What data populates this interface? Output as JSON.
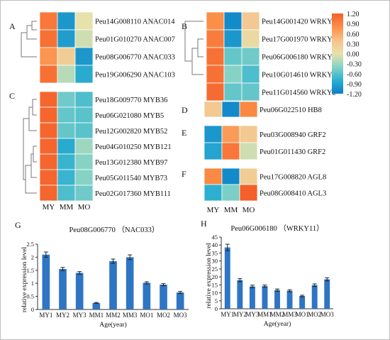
{
  "chart_data": [
    {
      "type": "heatmap",
      "panel": "A",
      "columns": [
        "MY",
        "MM",
        "MO"
      ],
      "rows": [
        {
          "label": "Peu14G008110 ANAC014",
          "values": [
            1.0,
            -1.0,
            0.0
          ]
        },
        {
          "label": "Peu01G010270 ANAC007",
          "values": [
            1.05,
            -0.95,
            -0.1
          ]
        },
        {
          "label": "Peu08G006770 ANAC033",
          "values": [
            0.75,
            0.25,
            -1.0
          ]
        },
        {
          "label": "Peu19G006290 ANAC103",
          "values": [
            1.05,
            -0.2,
            -0.85
          ]
        }
      ]
    },
    {
      "type": "heatmap",
      "panel": "B",
      "columns": [
        "MY",
        "MM",
        "MO"
      ],
      "rows": [
        {
          "label": "Peu14G001420 WRKY7",
          "values": [
            0.8,
            -1.1,
            0.3
          ]
        },
        {
          "label": "Peu17G001970 WRKY19",
          "values": [
            0.95,
            -1.0,
            0.1
          ]
        },
        {
          "label": "Peu06G006180 WRKY11",
          "values": [
            1.05,
            -0.55,
            -0.5
          ]
        },
        {
          "label": "Peu10G014610 WRKY3",
          "values": [
            1.05,
            -0.4,
            -0.65
          ]
        },
        {
          "label": "Peu11G014560 WRKY2",
          "values": [
            1.1,
            -0.55,
            -0.55
          ]
        }
      ]
    },
    {
      "type": "heatmap",
      "panel": "C",
      "columns": [
        "MY",
        "MM",
        "MO"
      ],
      "rows": [
        {
          "label": "Peu18G009770 MYB36",
          "values": [
            1.15,
            -0.5,
            -0.65
          ]
        },
        {
          "label": "Peu06G021080 MYB5",
          "values": [
            1.15,
            -0.55,
            -0.6
          ]
        },
        {
          "label": "Peu12G002820 MYB52",
          "values": [
            1.15,
            -0.55,
            -0.6
          ]
        },
        {
          "label": "Peu04G010250 MYB121",
          "values": [
            1.15,
            -0.85,
            -0.3
          ]
        },
        {
          "label": "Peu13G012380 MYB97",
          "values": [
            1.15,
            -0.75,
            -0.4
          ]
        },
        {
          "label": "Peu05G011540 MYB73",
          "values": [
            1.15,
            -0.75,
            -0.4
          ]
        },
        {
          "label": "Peu02G017360 MYB111",
          "values": [
            1.15,
            -0.65,
            -0.5
          ]
        }
      ]
    },
    {
      "type": "heatmap",
      "panel": "D",
      "columns": [
        "MY",
        "MM",
        "MO"
      ],
      "rows": [
        {
          "label": "Peu06G022510 HB8",
          "values": [
            0.3,
            -1.1,
            0.85
          ]
        }
      ]
    },
    {
      "type": "heatmap",
      "panel": "E",
      "columns": [
        "MY",
        "MM",
        "MO"
      ],
      "rows": [
        {
          "label": "Peu03G008940 GRF2",
          "values": [
            -1.0,
            0.7,
            0.3
          ]
        },
        {
          "label": "Peu01G011430 GRF2",
          "values": [
            -0.9,
            1.0,
            -0.1
          ]
        }
      ]
    },
    {
      "type": "heatmap",
      "panel": "F",
      "columns": [
        "MY",
        "MM",
        "MO"
      ],
      "rows": [
        {
          "label": "Peu17G008820 AGL8",
          "values": [
            0.85,
            -1.1,
            0.25
          ]
        },
        {
          "label": "Peu08G008410 AGL3",
          "values": [
            -0.8,
            -0.45,
            1.2
          ]
        }
      ]
    },
    {
      "type": "colorbar",
      "ticks": [
        "1.20",
        "0.90",
        "0.60",
        "0.30",
        "0.00",
        "-0.30",
        "-0.60",
        "-0.90",
        "-1.20"
      ],
      "range": [
        -1.2,
        1.2
      ],
      "colors": [
        "#0a7ec8",
        "#2db0d0",
        "#86d3c6",
        "#e7e1aa",
        "#f7c189",
        "#fb8f48",
        "#f45f2a"
      ]
    },
    {
      "type": "bar",
      "panel": "G",
      "title": "Peu08G006770 （NAC033）",
      "xlabel": "Age(year)",
      "ylabel": "relative expression level",
      "categories": [
        "MY1",
        "MY2",
        "MY3",
        "MM1",
        "MM2",
        "MM3",
        "MO1",
        "MO2",
        "MO3"
      ],
      "values": [
        2.1,
        1.55,
        1.4,
        0.25,
        1.85,
        2.0,
        1.02,
        0.95,
        0.65
      ],
      "errors": [
        0.1,
        0.06,
        0.05,
        0.02,
        0.08,
        0.09,
        0.04,
        0.04,
        0.04
      ],
      "yticks": [
        "0",
        "0.5",
        "1",
        "1.5",
        "2",
        "2.5"
      ],
      "ylim": [
        0,
        2.5
      ],
      "bar_color": "#2e75c4"
    },
    {
      "type": "bar",
      "panel": "H",
      "title": "Peu06G006180 （WRKY11）",
      "xlabel": "Age(year)",
      "ylabel": "relative expression level",
      "categories": [
        "MY1",
        "MY2",
        "MY3",
        "MM1",
        "MM2",
        "MM3",
        "MO1",
        "MO2",
        "MO3"
      ],
      "values": [
        38.5,
        18.0,
        14.0,
        14.2,
        11.7,
        11.3,
        8.0,
        14.8,
        18.5
      ],
      "errors": [
        2.0,
        1.0,
        0.8,
        0.7,
        0.7,
        0.6,
        0.5,
        0.8,
        1.0
      ],
      "yticks": [
        "0",
        "5",
        "10",
        "15",
        "20",
        "25",
        "30",
        "35",
        "40",
        "45"
      ],
      "ylim": [
        0,
        45
      ],
      "bar_color": "#2e75c4"
    }
  ]
}
